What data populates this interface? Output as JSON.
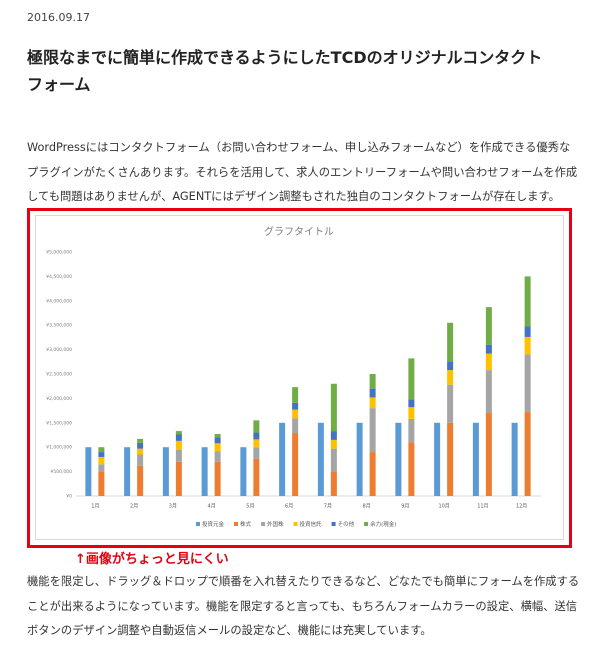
{
  "date": "2016.09.17",
  "title_lines": [
    "極限なまでに簡単に作成できるようにしたTCDのオリジナルコンタクト",
    "フォーム"
  ],
  "paragraph1": [
    "WordPressにはコンタクトフォーム（お問い合わせフォーム、申し込みフォームなど）を作成できる優秀な",
    "プラグインがたくさんあります。それらを活用して、求人のエントリーフォームや問い合わせフォームを作成",
    "しても問題はありませんが、AGENTにはデザイン調整もされた独自のコンタクトフォームが存在します。"
  ],
  "chart_data": {
    "type": "bar",
    "stacked": true,
    "title": "グラフタイトル",
    "categories": [
      "1月",
      "2月",
      "3月",
      "4月",
      "5月",
      "6月",
      "7月",
      "8月",
      "9月",
      "10月",
      "11月",
      "12月"
    ],
    "series": [
      {
        "name": "投資元金",
        "color": "#5b9bd5",
        "group": 0,
        "values": [
          1000000,
          1000000,
          1000000,
          1000000,
          1000000,
          1500000,
          1500000,
          1500000,
          1500000,
          1500000,
          1500000,
          1500000
        ]
      },
      {
        "name": "株式",
        "color": "#ed7d31",
        "group": 1,
        "values": [
          500000,
          620000,
          700000,
          700000,
          760000,
          1290000,
          500000,
          900000,
          1100000,
          1500000,
          1700000,
          1720000
        ]
      },
      {
        "name": "外国株",
        "color": "#a5a5a5",
        "group": 1,
        "values": [
          150000,
          230000,
          250000,
          220000,
          240000,
          300000,
          470000,
          900000,
          480000,
          780000,
          880000,
          1180000
        ]
      },
      {
        "name": "投資信託",
        "color": "#ffc000",
        "group": 1,
        "values": [
          150000,
          120000,
          180000,
          160000,
          160000,
          180000,
          180000,
          220000,
          240000,
          300000,
          340000,
          360000
        ]
      },
      {
        "name": "その他",
        "color": "#4472c4",
        "group": 1,
        "values": [
          100000,
          120000,
          130000,
          120000,
          140000,
          140000,
          180000,
          180000,
          160000,
          180000,
          180000,
          220000
        ]
      },
      {
        "name": "余力(現金)",
        "color": "#70ad47",
        "group": 1,
        "values": [
          100000,
          80000,
          70000,
          70000,
          250000,
          320000,
          970000,
          300000,
          840000,
          790000,
          770000,
          1020000
        ]
      }
    ],
    "ylim": [
      0,
      5000000
    ],
    "yticks": [
      {
        "value": 0,
        "label": "¥0"
      },
      {
        "value": 500000,
        "label": "¥500,000"
      },
      {
        "value": 1000000,
        "label": "¥1,000,000"
      },
      {
        "value": 1500000,
        "label": "¥1,500,000"
      },
      {
        "value": 2000000,
        "label": "¥2,000,000"
      },
      {
        "value": 2500000,
        "label": "¥2,500,000"
      },
      {
        "value": 3000000,
        "label": "¥3,000,000"
      },
      {
        "value": 3500000,
        "label": "¥3,500,000"
      },
      {
        "value": 4000000,
        "label": "¥4,000,000"
      },
      {
        "value": 4500000,
        "label": "¥4,500,000"
      },
      {
        "value": 5000000,
        "label": "¥5,000,000"
      }
    ],
    "grid": false,
    "legend": "bottom"
  },
  "caption": "↑画像がちょっと見にくい",
  "paragraph2": [
    "機能を限定し、ドラッグ＆ドロップで順番を入れ替えたりできるなど、どなたでも簡単にフォームを作成する",
    "ことが出来るようになっています。機能を限定すると言っても、もちろんフォームカラーの設定、横幅、送信",
    "ボタンのデザイン調整や自動返信メールの設定など、機能には充実しています。"
  ]
}
